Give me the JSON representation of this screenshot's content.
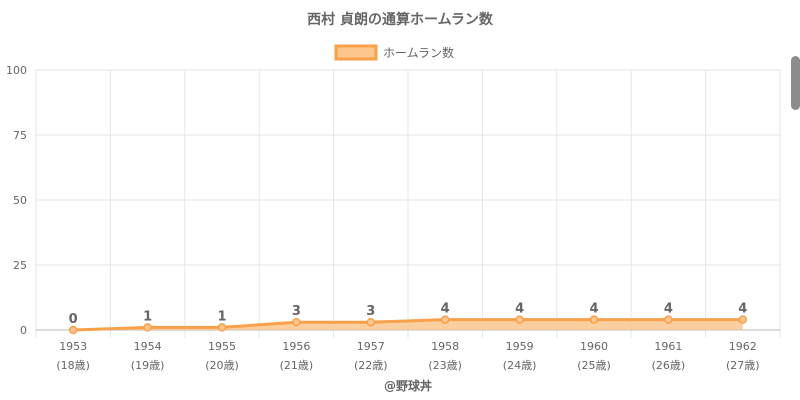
{
  "chart_data": {
    "type": "area",
    "title": "西村 貞朗の通算ホームラン数",
    "legend": {
      "label": "ホームラン数",
      "position": "top-center"
    },
    "categories": [
      "1953",
      "1954",
      "1955",
      "1956",
      "1957",
      "1958",
      "1959",
      "1960",
      "1961",
      "1962"
    ],
    "age_labels": [
      "(18歳)",
      "(19歳)",
      "(20歳)",
      "(21歳)",
      "(22歳)",
      "(23歳)",
      "(24歳)",
      "(25歳)",
      "(26歳)",
      "(27歳)"
    ],
    "series": [
      {
        "name": "ホームラン数",
        "values": [
          0,
          1,
          1,
          3,
          3,
          4,
          4,
          4,
          4,
          4
        ]
      }
    ],
    "ylim": [
      0,
      100
    ],
    "yticks": [
      0,
      25,
      50,
      75,
      100
    ],
    "grid": true,
    "colors": {
      "line": "#f9a04a",
      "fill": "#fcc78f",
      "grid": "#e6e6e6",
      "axis": "#bbbbbb"
    }
  },
  "credit": "@野球丼"
}
